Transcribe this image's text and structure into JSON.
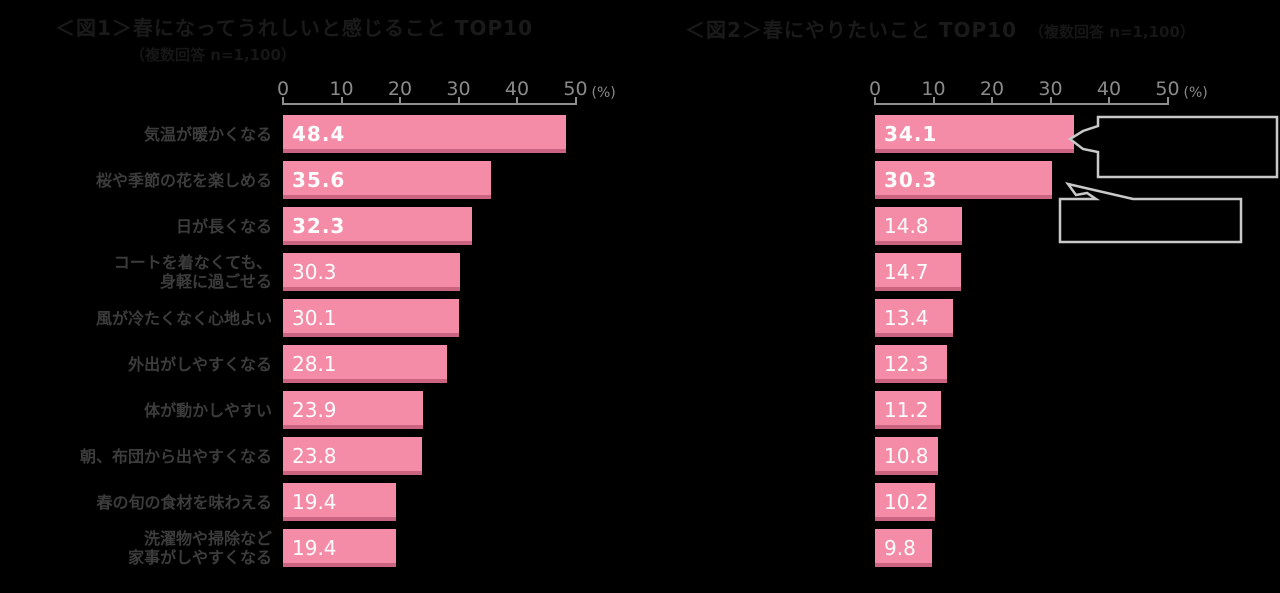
{
  "colors": {
    "background": "#000000",
    "bar_pink": "#F48CA8",
    "bar_bottom_edge": "#9E3A58",
    "value_text": "#FCFCFC",
    "row_label_text": "#3C3C3C",
    "axis_text": "#8A8A8A",
    "title_text": "#1A1A1A",
    "callout_border": "#C9C9C9",
    "callout_fill": "#000000"
  },
  "chart_data": [
    {
      "type": "bar",
      "orientation": "horizontal",
      "title": "＜図1＞春になってうれしいと感じること TOP10",
      "subtitle": "（複数回答 n=1,100）",
      "unit": "(%)",
      "xlim": [
        0,
        50
      ],
      "ticks": [
        "0",
        "10",
        "20",
        "30",
        "40",
        "50"
      ],
      "grid": false,
      "legend": false,
      "bold_top_n": 3,
      "categories": [
        "気温が暖かくなる",
        "桜や季節の花を楽しめる",
        "日が長くなる",
        "コートを着なくても、\n身軽に過ごせる",
        "風が冷たくなく心地よい",
        "外出がしやすくなる",
        "体が動かしやすい",
        "朝、布団から出やすくなる",
        "春の旬の食材を味わえる",
        "洗濯物や掃除など\n家事がしやすくなる"
      ],
      "values": [
        48.4,
        35.6,
        32.3,
        30.3,
        30.1,
        28.1,
        23.9,
        23.8,
        19.4,
        19.4
      ]
    },
    {
      "type": "bar",
      "orientation": "horizontal",
      "title": "＜図2＞春にやりたいこと TOP10",
      "subtitle": "（複数回答 n=1,100）",
      "unit": "(%)",
      "xlim": [
        0,
        50
      ],
      "ticks": [
        "0",
        "10",
        "20",
        "30",
        "40",
        "50"
      ],
      "grid": false,
      "legend": false,
      "bold_top_n": 2,
      "values": [
        34.1,
        30.3,
        14.8,
        14.7,
        13.4,
        12.3,
        11.2,
        10.8,
        10.2,
        9.8
      ],
      "callouts": [
        {
          "points_to_value": 34.1,
          "text": ""
        },
        {
          "points_to_value": 30.3,
          "text": ""
        }
      ]
    }
  ]
}
